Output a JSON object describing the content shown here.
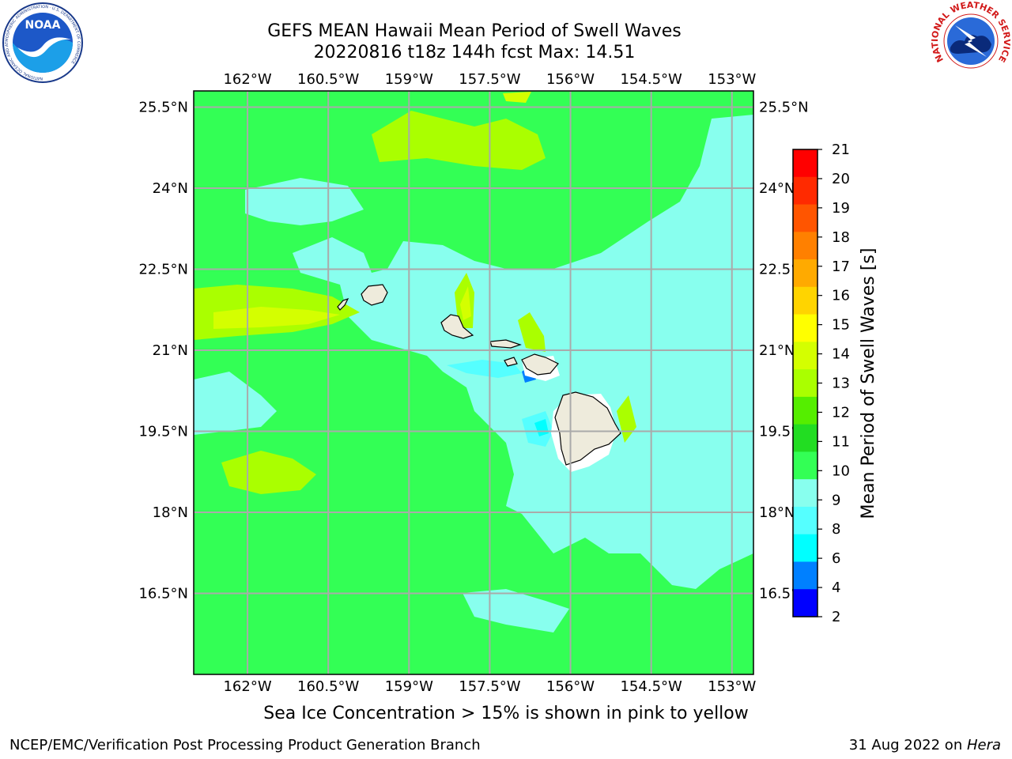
{
  "header": {
    "title_line1": "GEFS MEAN Hawaii Mean Period of Swell Waves",
    "title_line2": "20220816 t18z 144h fcst   Max: 14.51"
  },
  "logos": {
    "left": {
      "icon": "noaa-logo",
      "text": "NOAA",
      "ring_text": "NATIONAL OCEANIC AND ATMOSPHERIC ADMINISTRATION · U.S. DEPARTMENT OF COMMERCE"
    },
    "right": {
      "icon": "nws-logo",
      "ring_text": "NATIONAL WEATHER SERVICE"
    }
  },
  "map": {
    "lon_ticks": [
      "162°W",
      "160.5°W",
      "159°W",
      "157.5°W",
      "156°W",
      "154.5°W",
      "153°W"
    ],
    "lat_ticks": [
      "25.5°N",
      "24°N",
      "22.5°N",
      "21°N",
      "19.5°N",
      "18°N",
      "16.5°N"
    ],
    "lon_values": [
      -162,
      -160.5,
      -159,
      -157.5,
      -156,
      -154.5,
      -153
    ],
    "lat_values": [
      25.5,
      24,
      22.5,
      21,
      19.5,
      18,
      16.5
    ],
    "lon_range": [
      -163,
      -152.6
    ],
    "lat_range": [
      15,
      25.8
    ],
    "dominant_fill_color": "#33ff55",
    "land_color": "#eeebdc"
  },
  "colorbar": {
    "label": "Mean Period of Swell Waves [s]",
    "ticks": [
      "21",
      "20",
      "19",
      "18",
      "17",
      "16",
      "15",
      "14",
      "13",
      "12",
      "11",
      "10",
      "9",
      "8",
      "6",
      "4",
      "2"
    ],
    "colors": [
      "#ff0000",
      "#ff2a00",
      "#ff5500",
      "#ff8000",
      "#ffaa00",
      "#ffd400",
      "#ffff00",
      "#d4ff00",
      "#aaff00",
      "#55ee00",
      "#22dd22",
      "#33ff55",
      "#88ffee",
      "#55ffff",
      "#00ffff",
      "#0080ff",
      "#0000ff"
    ]
  },
  "note": "Sea Ice Concentration > 15% is shown in pink to yellow",
  "footer": {
    "left": "NCEP/EMC/Verification Post Processing Product Generation Branch",
    "right_date": "31 Aug 2022 on ",
    "right_host": "Hera"
  }
}
